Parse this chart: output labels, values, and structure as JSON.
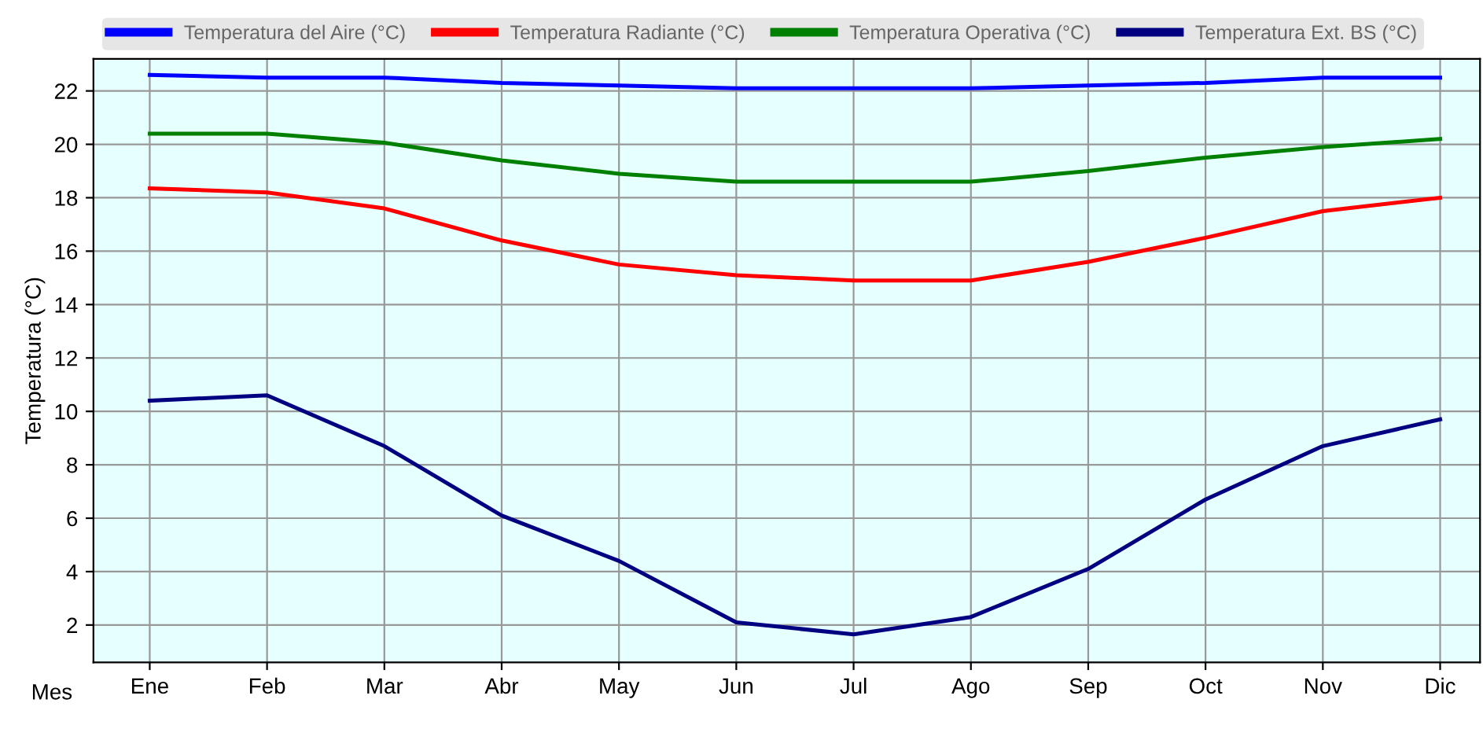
{
  "chart_data": {
    "type": "line",
    "xlabel": "Mes",
    "ylabel": "Temperatura (°C)",
    "categories": [
      "Ene",
      "Feb",
      "Mar",
      "Abr",
      "May",
      "Jun",
      "Jul",
      "Ago",
      "Sep",
      "Oct",
      "Nov",
      "Dic"
    ],
    "series": [
      {
        "name": "Temperatura del Aire (°C)",
        "color": "#0000ff",
        "values": [
          22.6,
          22.5,
          22.5,
          22.3,
          22.2,
          22.1,
          22.1,
          22.1,
          22.2,
          22.3,
          22.5,
          22.5
        ]
      },
      {
        "name": "Temperatura Radiante (°C)",
        "color": "#ff0000",
        "values": [
          18.35,
          18.2,
          17.6,
          16.4,
          15.5,
          15.1,
          14.9,
          14.9,
          15.6,
          16.5,
          17.5,
          18.0
        ]
      },
      {
        "name": "Temperatura Operativa (°C)",
        "color": "#008000",
        "values": [
          20.4,
          20.4,
          20.06,
          19.4,
          18.9,
          18.6,
          18.6,
          18.6,
          19.0,
          19.5,
          19.9,
          20.2
        ]
      },
      {
        "name": "Temperatura Ext. BS (°C)",
        "color": "#000080",
        "values": [
          10.4,
          10.6,
          8.7,
          6.1,
          4.4,
          2.1,
          1.65,
          2.3,
          4.1,
          6.7,
          8.7,
          9.7
        ]
      }
    ],
    "ylim": [
      0.6,
      23.2
    ],
    "yticks": [
      2,
      4,
      6,
      8,
      10,
      12,
      14,
      16,
      18,
      20,
      22
    ],
    "grid": true,
    "legend": "top",
    "marker": "none",
    "line_style": "solid"
  }
}
